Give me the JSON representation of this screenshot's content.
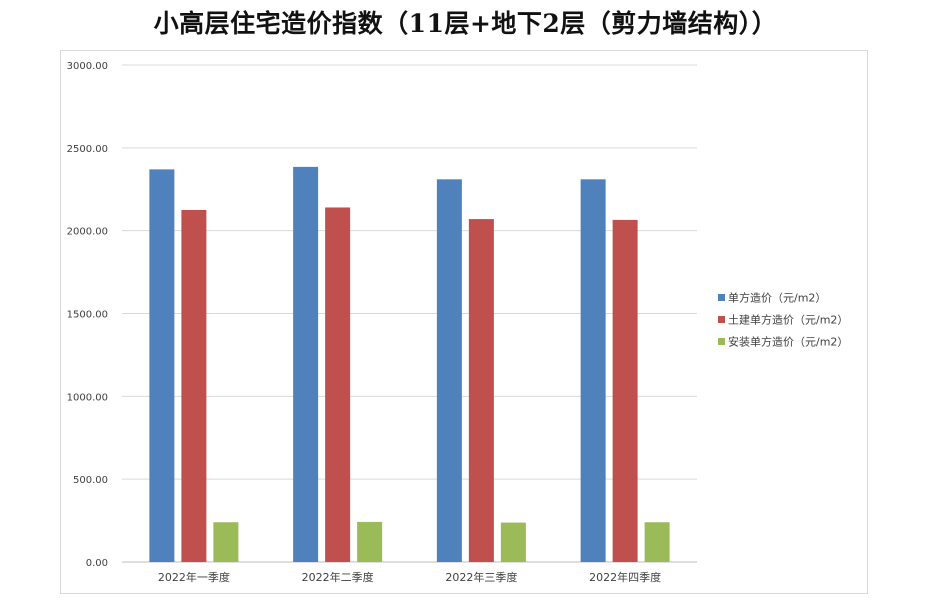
{
  "chart_data": {
    "type": "bar",
    "title": "小高层住宅造价指数（11层+地下2层（剪力墙结构））",
    "xlabel": "",
    "ylabel": "",
    "categories": [
      "2022年一季度",
      "2022年二季度",
      "2022年三季度",
      "2022年四季度"
    ],
    "yticks": [
      "0.00",
      "500.00",
      "1000.00",
      "1500.00",
      "2000.00",
      "2500.00",
      "3000.00"
    ],
    "ylim": [
      0,
      3000
    ],
    "grid": true,
    "legend_position": "right",
    "series": [
      {
        "name": "单方造价（元/m2）",
        "color": "#4f81bd",
        "values": [
          2370,
          2385,
          2310,
          2310
        ]
      },
      {
        "name": "土建单方造价（元/m2）",
        "color": "#c0504d",
        "values": [
          2125,
          2140,
          2070,
          2065
        ]
      },
      {
        "name": "安装单方造价（元/m2）",
        "color": "#9bbb59",
        "values": [
          240,
          242,
          238,
          240
        ]
      }
    ]
  }
}
